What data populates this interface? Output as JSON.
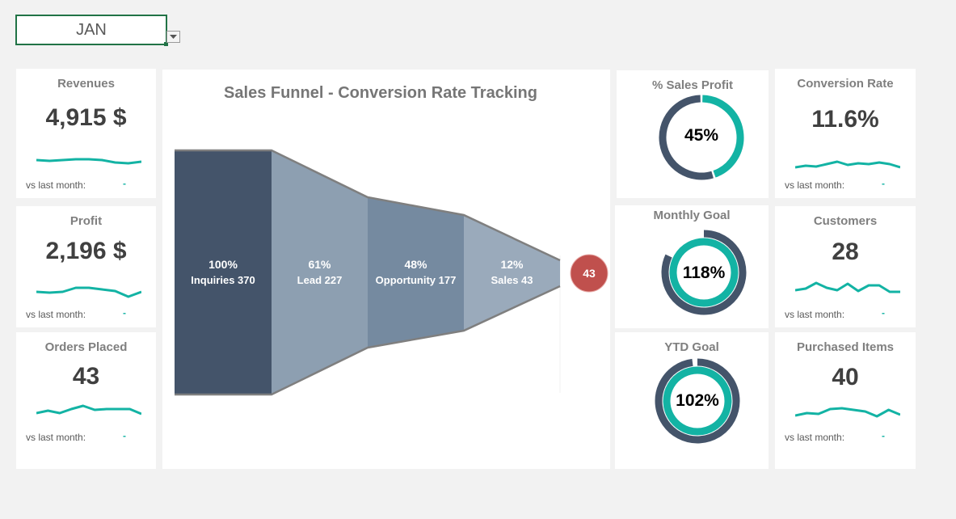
{
  "month": {
    "value": "JAN"
  },
  "kpis": {
    "revenues": {
      "title": "Revenues",
      "value": "4,915 $",
      "vs_label": "vs last month:",
      "delta": "-",
      "spark": [
        8,
        9,
        8,
        7,
        7,
        8,
        11,
        12,
        10
      ]
    },
    "profit": {
      "title": "Profit",
      "value": "2,196 $",
      "vs_label": "vs last month:",
      "delta": "-",
      "spark": [
        10,
        11,
        10,
        5,
        5,
        7,
        9,
        16,
        10
      ]
    },
    "orders": {
      "title": "Orders Placed",
      "value": "43",
      "vs_label": "vs last month:",
      "delta": "-",
      "spark": [
        12,
        9,
        12,
        7,
        3,
        8,
        7,
        7,
        7,
        13
      ]
    },
    "conversion": {
      "title": "Conversion Rate",
      "value": "11.6%",
      "vs_label": "vs last month:",
      "delta": "-",
      "spark": [
        14,
        12,
        13,
        10,
        7,
        11,
        9,
        10,
        8,
        10,
        14
      ]
    },
    "customers": {
      "title": "Customers",
      "value": "28",
      "vs_label": "vs last month:",
      "delta": "-",
      "spark": [
        14,
        12,
        5,
        11,
        14,
        6,
        15,
        8,
        8,
        16,
        16
      ]
    },
    "purchased": {
      "title": "Purchased Items",
      "value": "40",
      "vs_label": "vs last month:",
      "delta": "-",
      "spark": [
        13,
        10,
        11,
        5,
        4,
        6,
        8,
        14,
        6,
        12
      ]
    }
  },
  "funnel": {
    "title": "Sales Funnel - Conversion Rate Tracking",
    "stages": [
      {
        "pct": "100%",
        "label": "Inquiries 370",
        "color": "#44546a"
      },
      {
        "pct": "61%",
        "label": "Lead 227",
        "color": "#8d9fb1"
      },
      {
        "pct": "48%",
        "label": "Opportunity 177",
        "color": "#758aa0"
      },
      {
        "pct": "12%",
        "label": "Sales 43",
        "color": "#9aaabb"
      }
    ],
    "result_badge": "43",
    "badge_color": "#c0504d"
  },
  "gauges": {
    "sales_profit": {
      "title": "% Sales Profit",
      "value": "45%",
      "fraction": 0.45
    },
    "monthly_goal": {
      "title": "Monthly Goal",
      "value": "118%",
      "fraction": 1.18
    },
    "ytd_goal": {
      "title": "YTD Goal",
      "value": "102%",
      "fraction": 1.02
    }
  },
  "colors": {
    "teal": "#13b3a4",
    "dark": "#44546a",
    "accent": "#217346"
  }
}
